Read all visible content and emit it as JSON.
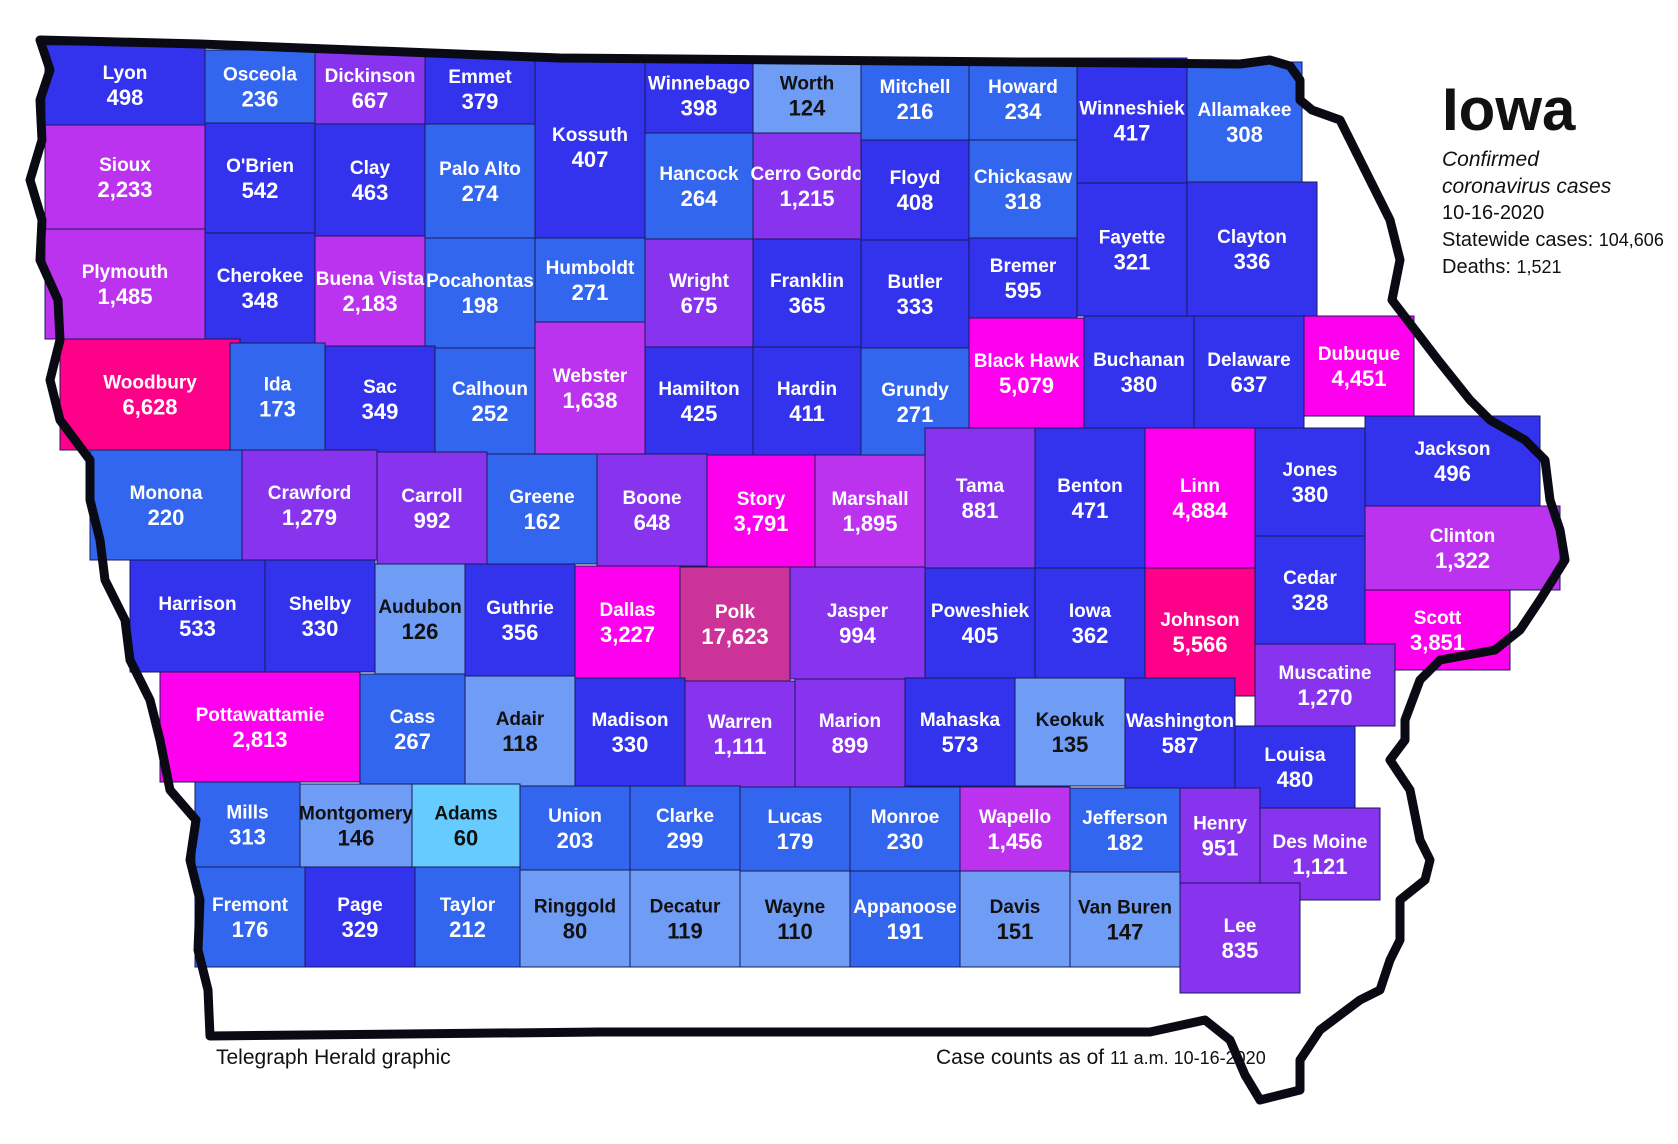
{
  "title": "Iowa",
  "subtitle_line1": "Confirmed",
  "subtitle_line2": "coronavirus cases",
  "date": "10-16-2020",
  "statewide_label": "Statewide cases:",
  "statewide_value": "104,606",
  "deaths_label": "Deaths:",
  "deaths_value": "1,521",
  "credit": "Telegraph Herald graphic",
  "asof_label": "Case counts as of",
  "asof_value": "11 a.m. 10-16-2020",
  "colors": {
    "low": "#66ccff",
    "light_blue": "#6f9cf5",
    "mid_blue": "#3366ee",
    "dark_blue": "#3333ee",
    "purple": "#8833ee",
    "violet": "#bb33ee",
    "magenta": "#ff00ee",
    "hot_pink": "#ff0088",
    "polk": "#cc3399",
    "outline": "#0a0a14"
  },
  "counties": [
    {
      "name": "Lyon",
      "cases": "498"
    },
    {
      "name": "Osceola",
      "cases": "236"
    },
    {
      "name": "Dickinson",
      "cases": "667"
    },
    {
      "name": "Emmet",
      "cases": "379"
    },
    {
      "name": "Kossuth",
      "cases": "407"
    },
    {
      "name": "Winnebago",
      "cases": "398"
    },
    {
      "name": "Worth",
      "cases": "124"
    },
    {
      "name": "Mitchell",
      "cases": "216"
    },
    {
      "name": "Howard",
      "cases": "234"
    },
    {
      "name": "Winneshiek",
      "cases": "417"
    },
    {
      "name": "Allamakee",
      "cases": "308"
    },
    {
      "name": "Sioux",
      "cases": "2,233"
    },
    {
      "name": "O'Brien",
      "cases": "542"
    },
    {
      "name": "Clay",
      "cases": "463"
    },
    {
      "name": "Palo Alto",
      "cases": "274"
    },
    {
      "name": "Hancock",
      "cases": "264"
    },
    {
      "name": "Cerro Gordo",
      "cases": "1,215"
    },
    {
      "name": "Floyd",
      "cases": "408"
    },
    {
      "name": "Chickasaw",
      "cases": "318"
    },
    {
      "name": "Fayette",
      "cases": "321"
    },
    {
      "name": "Clayton",
      "cases": "336"
    },
    {
      "name": "Plymouth",
      "cases": "1,485"
    },
    {
      "name": "Cherokee",
      "cases": "348"
    },
    {
      "name": "Buena Vista",
      "cases": "2,183"
    },
    {
      "name": "Pocahontas",
      "cases": "198"
    },
    {
      "name": "Humboldt",
      "cases": "271"
    },
    {
      "name": "Wright",
      "cases": "675"
    },
    {
      "name": "Franklin",
      "cases": "365"
    },
    {
      "name": "Butler",
      "cases": "333"
    },
    {
      "name": "Bremer",
      "cases": "595"
    },
    {
      "name": "Black Hawk",
      "cases": "5,079"
    },
    {
      "name": "Buchanan",
      "cases": "380"
    },
    {
      "name": "Delaware",
      "cases": "637"
    },
    {
      "name": "Dubuque",
      "cases": "4,451"
    },
    {
      "name": "Woodbury",
      "cases": "6,628"
    },
    {
      "name": "Ida",
      "cases": "173"
    },
    {
      "name": "Sac",
      "cases": "349"
    },
    {
      "name": "Calhoun",
      "cases": "252"
    },
    {
      "name": "Webster",
      "cases": "1,638"
    },
    {
      "name": "Hamilton",
      "cases": "425"
    },
    {
      "name": "Hardin",
      "cases": "411"
    },
    {
      "name": "Grundy",
      "cases": "271"
    },
    {
      "name": "Tama",
      "cases": "881"
    },
    {
      "name": "Benton",
      "cases": "471"
    },
    {
      "name": "Linn",
      "cases": "4,884"
    },
    {
      "name": "Jones",
      "cases": "380"
    },
    {
      "name": "Jackson",
      "cases": "496"
    },
    {
      "name": "Monona",
      "cases": "220"
    },
    {
      "name": "Crawford",
      "cases": "1,279"
    },
    {
      "name": "Carroll",
      "cases": "992"
    },
    {
      "name": "Greene",
      "cases": "162"
    },
    {
      "name": "Boone",
      "cases": "648"
    },
    {
      "name": "Story",
      "cases": "3,791"
    },
    {
      "name": "Marshall",
      "cases": "1,895"
    },
    {
      "name": "Clinton",
      "cases": "1,322"
    },
    {
      "name": "Harrison",
      "cases": "533"
    },
    {
      "name": "Shelby",
      "cases": "330"
    },
    {
      "name": "Audubon",
      "cases": "126"
    },
    {
      "name": "Guthrie",
      "cases": "356"
    },
    {
      "name": "Dallas",
      "cases": "3,227"
    },
    {
      "name": "Polk",
      "cases": "17,623"
    },
    {
      "name": "Jasper",
      "cases": "994"
    },
    {
      "name": "Poweshiek",
      "cases": "405"
    },
    {
      "name": "Iowa",
      "cases": "362"
    },
    {
      "name": "Johnson",
      "cases": "5,566"
    },
    {
      "name": "Cedar",
      "cases": "328"
    },
    {
      "name": "Scott",
      "cases": "3,851"
    },
    {
      "name": "Muscatine",
      "cases": "1,270"
    },
    {
      "name": "Pottawattamie",
      "cases": "2,813"
    },
    {
      "name": "Cass",
      "cases": "267"
    },
    {
      "name": "Adair",
      "cases": "118"
    },
    {
      "name": "Madison",
      "cases": "330"
    },
    {
      "name": "Warren",
      "cases": "1,111"
    },
    {
      "name": "Marion",
      "cases": "899"
    },
    {
      "name": "Mahaska",
      "cases": "573"
    },
    {
      "name": "Keokuk",
      "cases": "135"
    },
    {
      "name": "Washington",
      "cases": "587"
    },
    {
      "name": "Louisa",
      "cases": "480"
    },
    {
      "name": "Mills",
      "cases": "313"
    },
    {
      "name": "Montgomery",
      "cases": "146"
    },
    {
      "name": "Adams",
      "cases": "60"
    },
    {
      "name": "Union",
      "cases": "203"
    },
    {
      "name": "Clarke",
      "cases": "299"
    },
    {
      "name": "Lucas",
      "cases": "179"
    },
    {
      "name": "Monroe",
      "cases": "230"
    },
    {
      "name": "Wapello",
      "cases": "1,456"
    },
    {
      "name": "Jefferson",
      "cases": "182"
    },
    {
      "name": "Henry",
      "cases": "951"
    },
    {
      "name": "Des Moine",
      "cases": "1,121"
    },
    {
      "name": "Fremont",
      "cases": "176"
    },
    {
      "name": "Page",
      "cases": "329"
    },
    {
      "name": "Taylor",
      "cases": "212"
    },
    {
      "name": "Ringgold",
      "cases": "80"
    },
    {
      "name": "Decatur",
      "cases": "119"
    },
    {
      "name": "Wayne",
      "cases": "110"
    },
    {
      "name": "Appanoose",
      "cases": "191"
    },
    {
      "name": "Davis",
      "cases": "151"
    },
    {
      "name": "Van Buren",
      "cases": "147"
    },
    {
      "name": "Lee",
      "cases": "835"
    }
  ]
}
